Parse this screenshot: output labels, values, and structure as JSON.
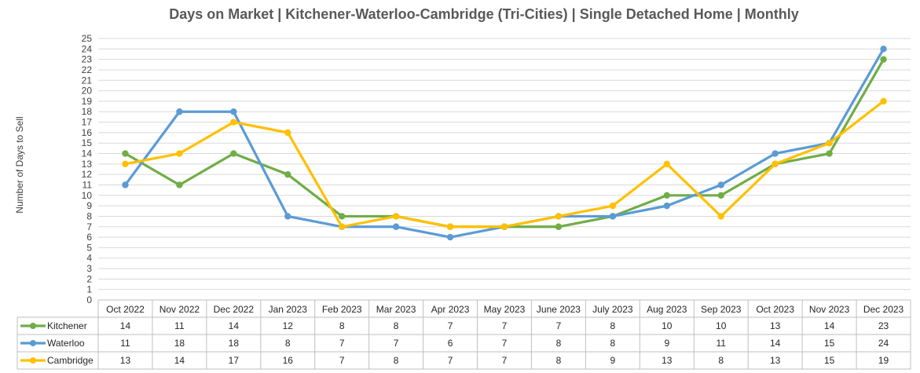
{
  "chart_data": {
    "type": "line",
    "title": "Days on Market | Kitchener-Waterloo-Cambridge (Tri-Cities) | Single Detached Home | Monthly",
    "xlabel": "",
    "ylabel": "Number of Days to Sell",
    "ylim": [
      0,
      25
    ],
    "yticks": [
      0,
      1,
      2,
      3,
      4,
      5,
      6,
      7,
      8,
      9,
      10,
      11,
      12,
      13,
      14,
      15,
      16,
      17,
      18,
      19,
      20,
      21,
      22,
      23,
      24,
      25
    ],
    "grid": true,
    "legend": "data-table-left",
    "categories": [
      "Oct 2022",
      "Nov 2022",
      "Dec 2022",
      "Jan 2023",
      "Feb 2023",
      "Mar 2023",
      "Apr 2023",
      "May 2023",
      "June 2023",
      "July 2023",
      "Aug 2023",
      "Sep 2023",
      "Oct 2023",
      "Nov 2023",
      "Dec 2023"
    ],
    "series": [
      {
        "name": "Kitchener",
        "color": "#70ad47",
        "values": [
          14,
          11,
          14,
          12,
          8,
          8,
          7,
          7,
          7,
          8,
          10,
          10,
          13,
          14,
          23
        ]
      },
      {
        "name": "Waterloo",
        "color": "#5b9bd5",
        "values": [
          11,
          18,
          18,
          8,
          7,
          7,
          6,
          7,
          8,
          8,
          9,
          11,
          14,
          15,
          24
        ]
      },
      {
        "name": "Cambridge",
        "color": "#ffc000",
        "values": [
          13,
          14,
          17,
          16,
          7,
          8,
          7,
          7,
          8,
          9,
          13,
          8,
          13,
          15,
          19
        ]
      }
    ]
  }
}
